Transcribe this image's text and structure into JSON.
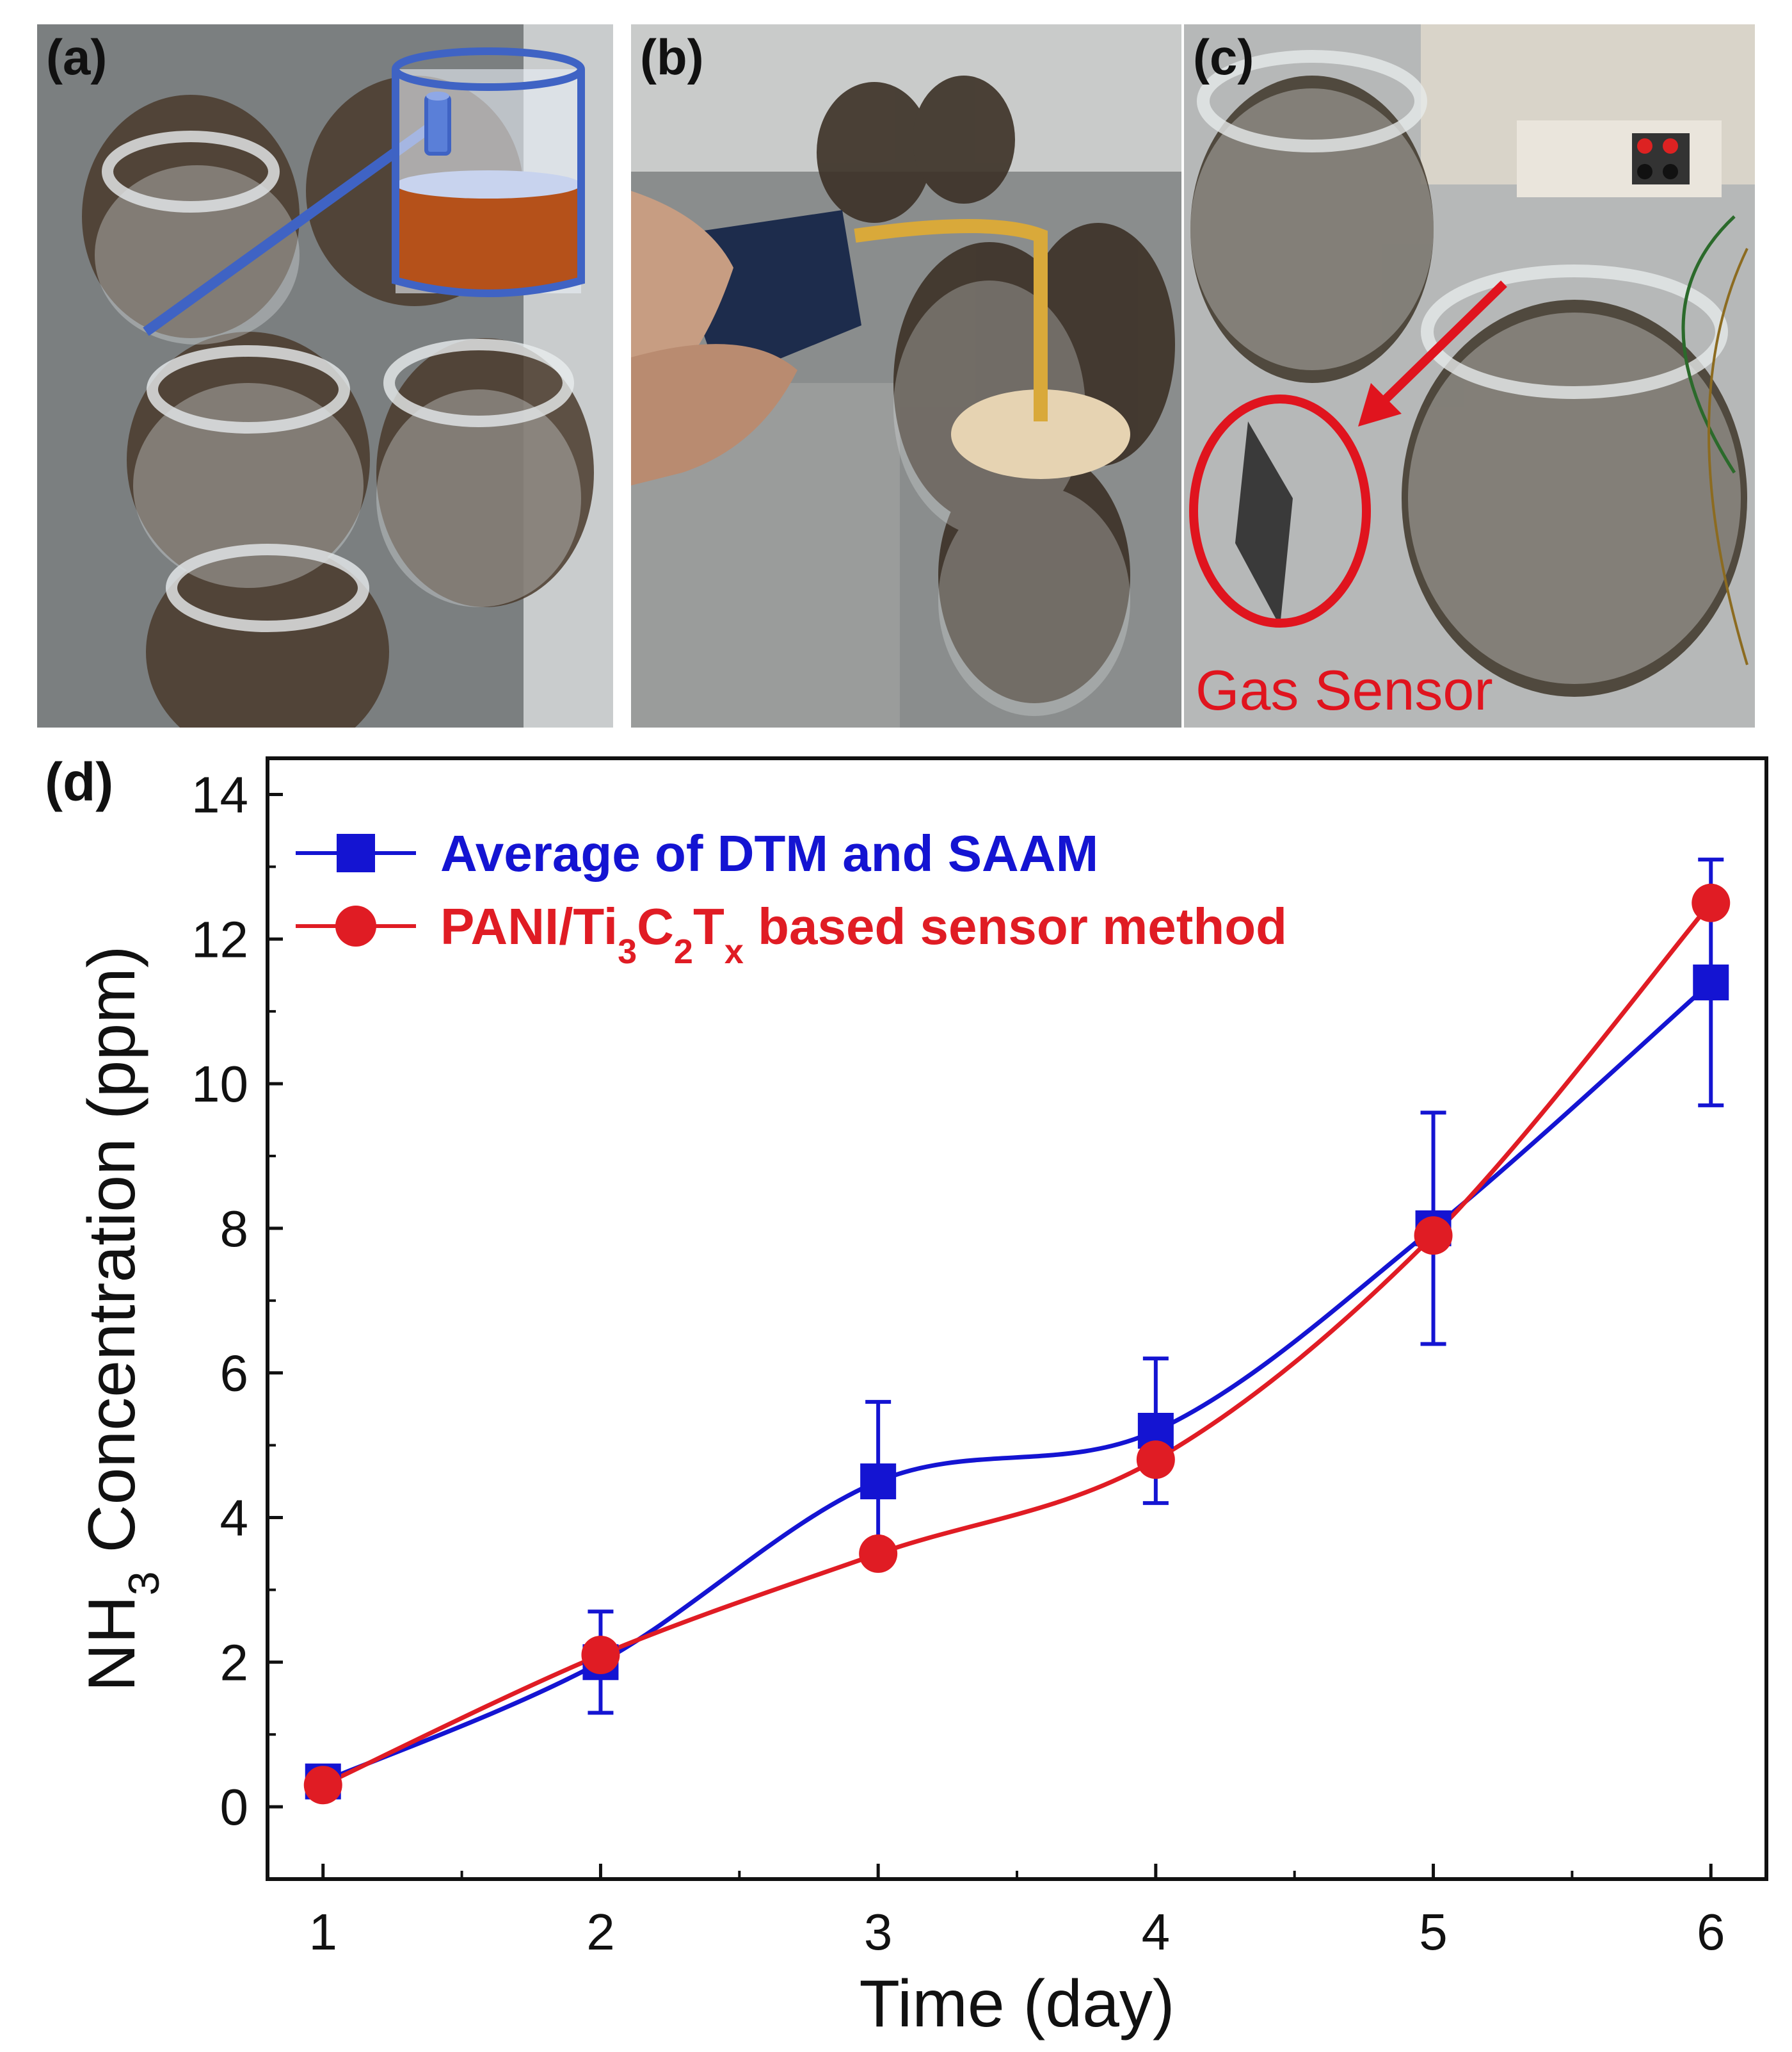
{
  "panels": {
    "a": {
      "label": "(a)"
    },
    "b": {
      "label": "(b)"
    },
    "c": {
      "label": "(c)",
      "annotation": "Gas Sensor"
    },
    "d": {
      "label": "(d)"
    }
  },
  "colors": {
    "blue_series": "#1414d2",
    "red_series": "#e01c24",
    "annotation_red": "#e0141e",
    "schematic_blue": "#3f63c4",
    "schematic_liquid": "#b5511a"
  },
  "chart_data": {
    "type": "line",
    "xlabel": "Time (day)",
    "ylabel_main": "NH",
    "ylabel_sub": "3",
    "ylabel_rest": " Concentration (ppm)",
    "xlim": [
      0.8,
      6.2
    ],
    "ylim": [
      -1,
      14.5
    ],
    "x_ticks": [
      "1",
      "2",
      "3",
      "4",
      "5",
      "6"
    ],
    "y_ticks": [
      "0",
      "2",
      "4",
      "6",
      "8",
      "10",
      "12",
      "14"
    ],
    "legend_position": "top-left",
    "legend": {
      "series1_label": "Average of DTM and SAAM",
      "series2_label_parts": [
        "PANI/Ti",
        "3",
        "C",
        "2",
        "T",
        "x",
        " based sensor method"
      ]
    },
    "series": [
      {
        "name": "Average of DTM and SAAM",
        "marker": "square",
        "color": "#1414d2",
        "x": [
          1,
          2,
          3,
          4,
          5,
          6
        ],
        "y": [
          0.35,
          2.0,
          4.5,
          5.2,
          8.0,
          11.4
        ],
        "error": [
          0.15,
          0.7,
          1.1,
          1.0,
          1.6,
          1.7
        ]
      },
      {
        "name": "PANI/Ti3C2Tx based sensor method",
        "marker": "circle",
        "color": "#e01c24",
        "x": [
          1,
          2,
          3,
          4,
          5,
          6
        ],
        "y": [
          0.3,
          2.1,
          3.5,
          4.8,
          7.9,
          12.5
        ]
      }
    ]
  }
}
